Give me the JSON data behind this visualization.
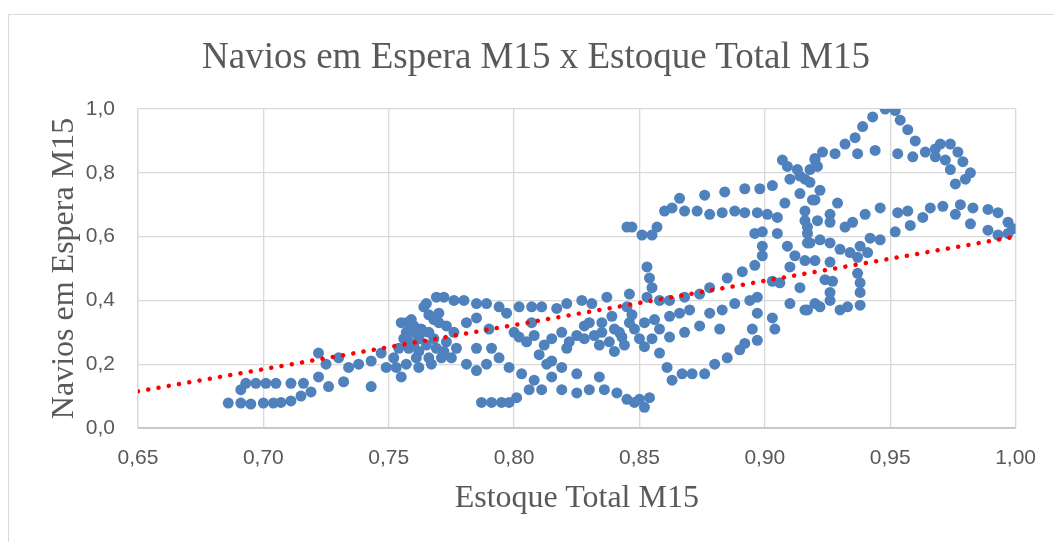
{
  "chart_data": {
    "type": "scatter",
    "title": "Navios em Espera M15 x Estoque Total M15",
    "xlabel": "Estoque Total M15",
    "ylabel": "Navios em Espera M15",
    "xlim": [
      0.65,
      1.0
    ],
    "ylim": [
      0,
      1.0
    ],
    "xticks": [
      {
        "value": 0.65,
        "label": "0,65"
      },
      {
        "value": 0.7,
        "label": "0,70"
      },
      {
        "value": 0.75,
        "label": "0,75"
      },
      {
        "value": 0.8,
        "label": "0,80"
      },
      {
        "value": 0.85,
        "label": "0,85"
      },
      {
        "value": 0.9,
        "label": "0,90"
      },
      {
        "value": 0.95,
        "label": "0,95"
      },
      {
        "value": 1.0,
        "label": "1,00"
      }
    ],
    "yticks": [
      {
        "value": 0,
        "label": "0,0"
      },
      {
        "value": 0.2,
        "label": "0,2"
      },
      {
        "value": 0.4,
        "label": "0,4"
      },
      {
        "value": 0.6,
        "label": "0,6"
      },
      {
        "value": 0.8,
        "label": "0,8"
      },
      {
        "value": 1.0,
        "label": "1,0"
      }
    ],
    "grid": true,
    "marker": "circle",
    "series": [
      {
        "type": "scatter",
        "color": "#4f81bd",
        "x": [
          0.686,
          0.691,
          0.695,
          0.7,
          0.704,
          0.707,
          0.711,
          0.715,
          0.719,
          0.691,
          0.693,
          0.697,
          0.701,
          0.705,
          0.711,
          0.716,
          0.722,
          0.725,
          0.722,
          0.726,
          0.73,
          0.732,
          0.734,
          0.738,
          0.743,
          0.743,
          0.747,
          0.749,
          0.755,
          0.755,
          0.759,
          0.764,
          0.765,
          0.757,
          0.76,
          0.752,
          0.758,
          0.762,
          0.757,
          0.76,
          0.763,
          0.766,
          0.768,
          0.76,
          0.758,
          0.762,
          0.765,
          0.769,
          0.773,
          0.776,
          0.77,
          0.773,
          0.768,
          0.756,
          0.754,
          0.761,
          0.767,
          0.772,
          0.757,
          0.753,
          0.769,
          0.772,
          0.776,
          0.78,
          0.785,
          0.789,
          0.794,
          0.797,
          0.802,
          0.807,
          0.811,
          0.817,
          0.821,
          0.827,
          0.831,
          0.837,
          0.846,
          0.766,
          0.763,
          0.77,
          0.762,
          0.766,
          0.771,
          0.777,
          0.775,
          0.781,
          0.785,
          0.789,
          0.781,
          0.785,
          0.79,
          0.785,
          0.791,
          0.794,
          0.798,
          0.803,
          0.802,
          0.808,
          0.812,
          0.819,
          0.825,
          0.821,
          0.834,
          0.842,
          0.846,
          0.839,
          0.83,
          0.8,
          0.805,
          0.81,
          0.815,
          0.807,
          0.815,
          0.822,
          0.828,
          0.835,
          0.84,
          0.832,
          0.838,
          0.843,
          0.848,
          0.852,
          0.84,
          0.856,
          0.862,
          0.866,
          0.87,
          0.858,
          0.835,
          0.828,
          0.787,
          0.791,
          0.795,
          0.798,
          0.801,
          0.806,
          0.808,
          0.811,
          0.815,
          0.813,
          0.819,
          0.819,
          0.825,
          0.825,
          0.83,
          0.834,
          0.836,
          0.841,
          0.845,
          0.848,
          0.85,
          0.854,
          0.852,
          0.845,
          0.847,
          0.851,
          0.855,
          0.857,
          0.86,
          0.863,
          0.866,
          0.868,
          0.873,
          0.876,
          0.878,
          0.884,
          0.883,
          0.888,
          0.892,
          0.892,
          0.898,
          0.897,
          0.903,
          0.901,
          0.905,
          0.907,
          0.909,
          0.91,
          0.913,
          0.916,
          0.918,
          0.92,
          0.919,
          0.908,
          0.905,
          0.909,
          0.912,
          0.916,
          0.916,
          0.917,
          0.917,
          0.853,
          0.854,
          0.855,
          0.853,
          0.896,
          0.899,
          0.899,
          0.899,
          0.896,
          0.891,
          0.885,
          0.878,
          0.874,
          0.868,
          0.862,
          0.858,
          0.845,
          0.847,
          0.844,
          0.85,
          0.855,
          0.862,
          0.868,
          0.874,
          0.878,
          0.883,
          0.888,
          0.894,
          0.897,
          0.897,
          0.895,
          0.892,
          0.897,
          0.89,
          0.885,
          0.88,
          0.876,
          0.871,
          0.867,
          0.863,
          0.861,
          0.858,
          0.852,
          0.882,
          0.903,
          0.904,
          0.903,
          0.906,
          0.91,
          0.914,
          0.91,
          0.916,
          0.92,
          0.914,
          0.92,
          0.923,
          0.928,
          0.932,
          0.936,
          0.939,
          0.943,
          0.948,
          0.952,
          0.954,
          0.957,
          0.96,
          0.964,
          0.968,
          0.97,
          0.974,
          0.977,
          0.979,
          0.982,
          0.98,
          0.976,
          0.974,
          0.972,
          0.968,
          0.959,
          0.953,
          0.944,
          0.937,
          0.921,
          0.918,
          0.922,
          0.92,
          0.929,
          0.926,
          0.932,
          0.935,
          0.94,
          0.946,
          0.953,
          0.958,
          0.957,
          0.963,
          0.966,
          0.971,
          0.976,
          0.978,
          0.983,
          0.982,
          0.989,
          0.993,
          0.997,
          0.999,
          0.997,
          0.993,
          0.989,
          0.952,
          0.946,
          0.942,
          0.938,
          0.941,
          0.937,
          0.917,
          0.916,
          0.914,
          0.921,
          0.926,
          0.918,
          0.922,
          0.926,
          0.93,
          0.934,
          0.92,
          0.926,
          0.937,
          0.924,
          0.927,
          0.938,
          0.938,
          0.926,
          0.926,
          0.933,
          0.938,
          0.93,
          0.922,
          0.917
        ],
        "values": [
          0.078,
          0.078,
          0.075,
          0.078,
          0.078,
          0.08,
          0.085,
          0.1,
          0.113,
          0.12,
          0.14,
          0.14,
          0.14,
          0.14,
          0.14,
          0.14,
          0.235,
          0.2,
          0.16,
          0.13,
          0.22,
          0.145,
          0.19,
          0.2,
          0.13,
          0.21,
          0.235,
          0.19,
          0.16,
          0.33,
          0.34,
          0.38,
          0.39,
          0.3,
          0.26,
          0.22,
          0.25,
          0.28,
          0.33,
          0.32,
          0.31,
          0.3,
          0.28,
          0.3,
          0.27,
          0.24,
          0.26,
          0.25,
          0.27,
          0.3,
          0.36,
          0.32,
          0.34,
          0.28,
          0.25,
          0.22,
          0.2,
          0.24,
          0.2,
          0.19,
          0.41,
          0.41,
          0.4,
          0.4,
          0.39,
          0.39,
          0.38,
          0.36,
          0.38,
          0.38,
          0.38,
          0.375,
          0.39,
          0.4,
          0.39,
          0.41,
          0.42,
          0.355,
          0.3,
          0.33,
          0.19,
          0.22,
          0.22,
          0.25,
          0.22,
          0.2,
          0.18,
          0.2,
          0.33,
          0.345,
          0.31,
          0.25,
          0.25,
          0.22,
          0.19,
          0.17,
          0.285,
          0.29,
          0.26,
          0.3,
          0.29,
          0.25,
          0.26,
          0.3,
          0.33,
          0.35,
          0.33,
          0.3,
          0.27,
          0.23,
          0.21,
          0.33,
          0.28,
          0.27,
          0.28,
          0.3,
          0.31,
          0.29,
          0.27,
          0.285,
          0.31,
          0.33,
          0.24,
          0.34,
          0.35,
          0.36,
          0.37,
          0.31,
          0.33,
          0.32,
          0.08,
          0.08,
          0.08,
          0.08,
          0.095,
          0.12,
          0.15,
          0.12,
          0.16,
          0.2,
          0.19,
          0.12,
          0.11,
          0.17,
          0.12,
          0.16,
          0.12,
          0.11,
          0.09,
          0.08,
          0.09,
          0.095,
          0.065,
          0.63,
          0.63,
          0.605,
          0.605,
          0.63,
          0.68,
          0.69,
          0.72,
          0.68,
          0.68,
          0.73,
          0.67,
          0.74,
          0.675,
          0.68,
          0.75,
          0.675,
          0.75,
          0.675,
          0.76,
          0.67,
          0.66,
          0.84,
          0.82,
          0.78,
          0.81,
          0.78,
          0.81,
          0.84,
          0.715,
          0.705,
          0.61,
          0.57,
          0.54,
          0.525,
          0.65,
          0.61,
          0.58,
          0.505,
          0.47,
          0.44,
          0.41,
          0.61,
          0.615,
          0.57,
          0.54,
          0.51,
          0.49,
          0.47,
          0.44,
          0.42,
          0.41,
          0.4,
          0.4,
          0.38,
          0.355,
          0.26,
          0.28,
          0.28,
          0.285,
          0.3,
          0.32,
          0.36,
          0.37,
          0.39,
          0.4,
          0.41,
          0.36,
          0.31,
          0.265,
          0.275,
          0.245,
          0.22,
          0.2,
          0.17,
          0.17,
          0.17,
          0.15,
          0.19,
          0.235,
          0.255,
          0.31,
          0.345,
          0.31,
          0.46,
          0.455,
          0.505,
          0.44,
          0.39,
          0.37,
          0.39,
          0.79,
          0.845,
          0.865,
          0.86,
          0.89,
          0.91,
          0.945,
          0.975,
          1.0,
          0.995,
          0.965,
          0.935,
          0.9,
          0.865,
          0.875,
          0.89,
          0.89,
          0.865,
          0.835,
          0.8,
          0.78,
          0.765,
          0.81,
          0.84,
          0.85,
          0.85,
          0.86,
          0.87,
          0.86,
          0.82,
          0.77,
          0.745,
          0.715,
          0.705,
          0.67,
          0.63,
          0.645,
          0.67,
          0.69,
          0.675,
          0.635,
          0.68,
          0.66,
          0.69,
          0.695,
          0.67,
          0.7,
          0.69,
          0.64,
          0.685,
          0.675,
          0.645,
          0.625,
          0.61,
          0.605,
          0.62,
          0.615,
          0.59,
          0.595,
          0.57,
          0.55,
          0.535,
          0.63,
          0.68,
          0.735,
          0.65,
          0.645,
          0.58,
          0.59,
          0.58,
          0.56,
          0.55,
          0.525,
          0.52,
          0.485,
          0.465,
          0.46,
          0.455,
          0.425,
          0.425,
          0.4,
          0.38,
          0.385,
          0.37,
          0.38,
          0.37
        ]
      },
      {
        "type": "line",
        "color": "#ff0000",
        "line_style": "dotted",
        "marker": "none",
        "x": [
          0.65,
          1.0
        ],
        "values": [
          0.115,
          0.6
        ]
      }
    ]
  }
}
